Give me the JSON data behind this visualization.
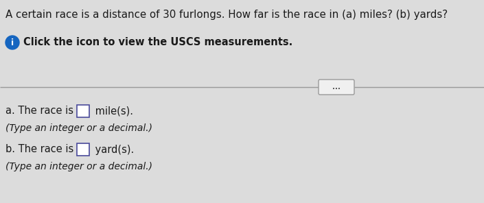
{
  "bg_color": "#dcdcdc",
  "top_bg_color": "#f0f0f0",
  "title_text": "A certain race is a distance of 30 furlongs. How far is the race in (a) miles? (b) yards?",
  "info_text": "Click the icon to view the USCS measurements.",
  "line_color": "#999999",
  "dots_text": "...",
  "part_a_prefix": "a. The race is ",
  "part_a_suffix": " mile(s).",
  "part_a_hint": "(Type an integer or a decimal.)",
  "part_b_prefix": "b. The race is ",
  "part_b_suffix": " yard(s).",
  "part_b_hint": "(Type an integer or a decimal.)",
  "text_color": "#1a1a1a",
  "box_color": "#ffffff",
  "box_edge_color": "#4a4a9a",
  "icon_bg": "#1565c0",
  "icon_text_color": "#ffffff",
  "title_fontsize": 10.8,
  "body_fontsize": 10.5,
  "hint_fontsize": 10.0,
  "fig_w": 7.05,
  "fig_h": 2.96,
  "dpi": 100
}
